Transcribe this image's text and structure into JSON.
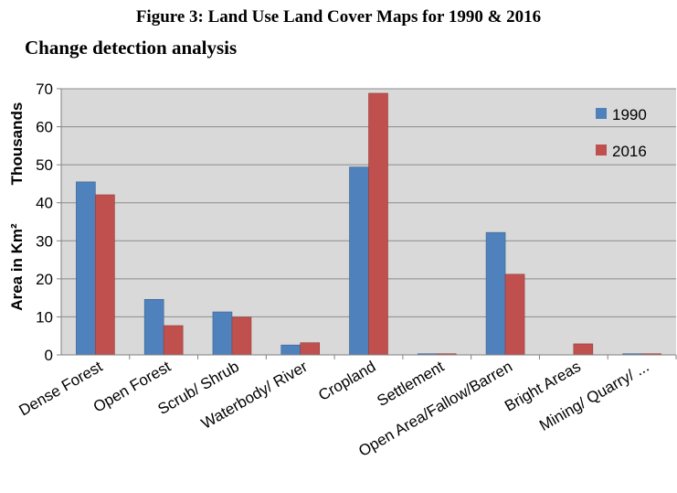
{
  "figure": {
    "title": "Figure 3: Land Use Land Cover Maps for 1990 & 2016",
    "subtitle": "Change detection analysis"
  },
  "chart_data": {
    "type": "bar",
    "categories": [
      "Dense Forest",
      "Open Forest",
      "Scrub/ Shrub",
      "Waterbody/ River",
      "Cropland",
      "Settlement",
      "Open Area/Fallow/Barren",
      "Bright Areas",
      "Mining/ Quarry/ ..."
    ],
    "series": [
      {
        "name": "1990",
        "color": "#4F81BD",
        "values": [
          45.5,
          14.6,
          11.3,
          2.6,
          49.4,
          0.3,
          32.2,
          0.0,
          0.3
        ]
      },
      {
        "name": "2016",
        "color": "#C0504D",
        "values": [
          42.1,
          7.7,
          9.9,
          3.2,
          68.8,
          0.3,
          21.2,
          2.9,
          0.3
        ]
      }
    ],
    "ylabel": "Area in Km²",
    "yunit": "Thousands",
    "ylim": [
      0,
      70
    ],
    "yticks": [
      0,
      10,
      20,
      30,
      40,
      50,
      60,
      70
    ],
    "grid": true,
    "legend_position": "top-right",
    "plot_background": "#D9D9D9"
  }
}
